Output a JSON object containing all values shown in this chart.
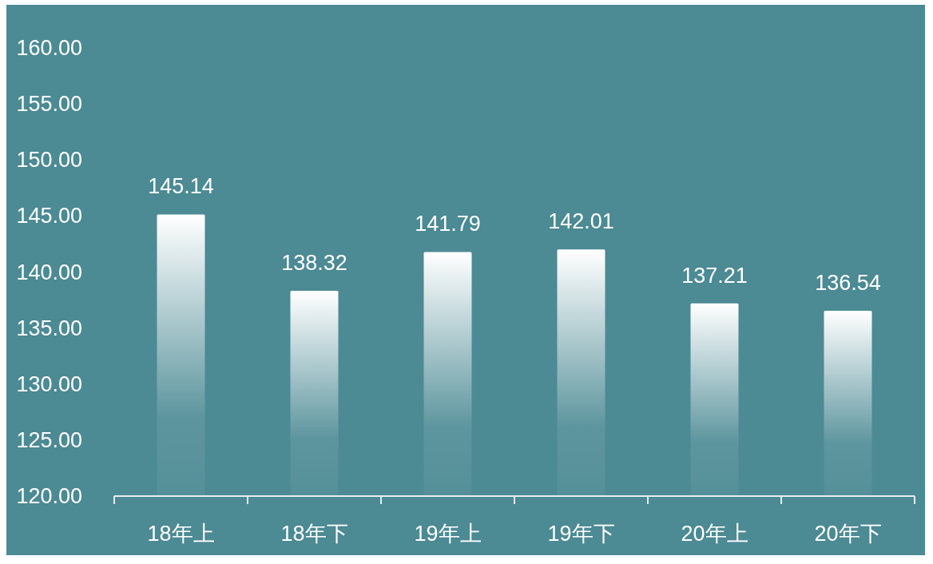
{
  "chart_data": {
    "type": "bar",
    "categories": [
      "18年上",
      "18年下",
      "19年上",
      "19年下",
      "20年上",
      "20年下"
    ],
    "values": [
      145.14,
      138.32,
      141.79,
      142.01,
      137.21,
      136.54
    ],
    "color": "#ffffff",
    "ylim": [
      120,
      160
    ],
    "yticks": [
      {
        "value": 120,
        "label": "120.00"
      },
      {
        "value": 125,
        "label": "125.00"
      },
      {
        "value": 130,
        "label": "130.00"
      },
      {
        "value": 135,
        "label": "135.00"
      },
      {
        "value": 140,
        "label": "140.00"
      },
      {
        "value": 145,
        "label": "145.00"
      },
      {
        "value": 150,
        "label": "150.00"
      },
      {
        "value": 155,
        "label": "155.00"
      },
      {
        "value": 160,
        "label": "160.00"
      }
    ],
    "data_labels": true
  }
}
